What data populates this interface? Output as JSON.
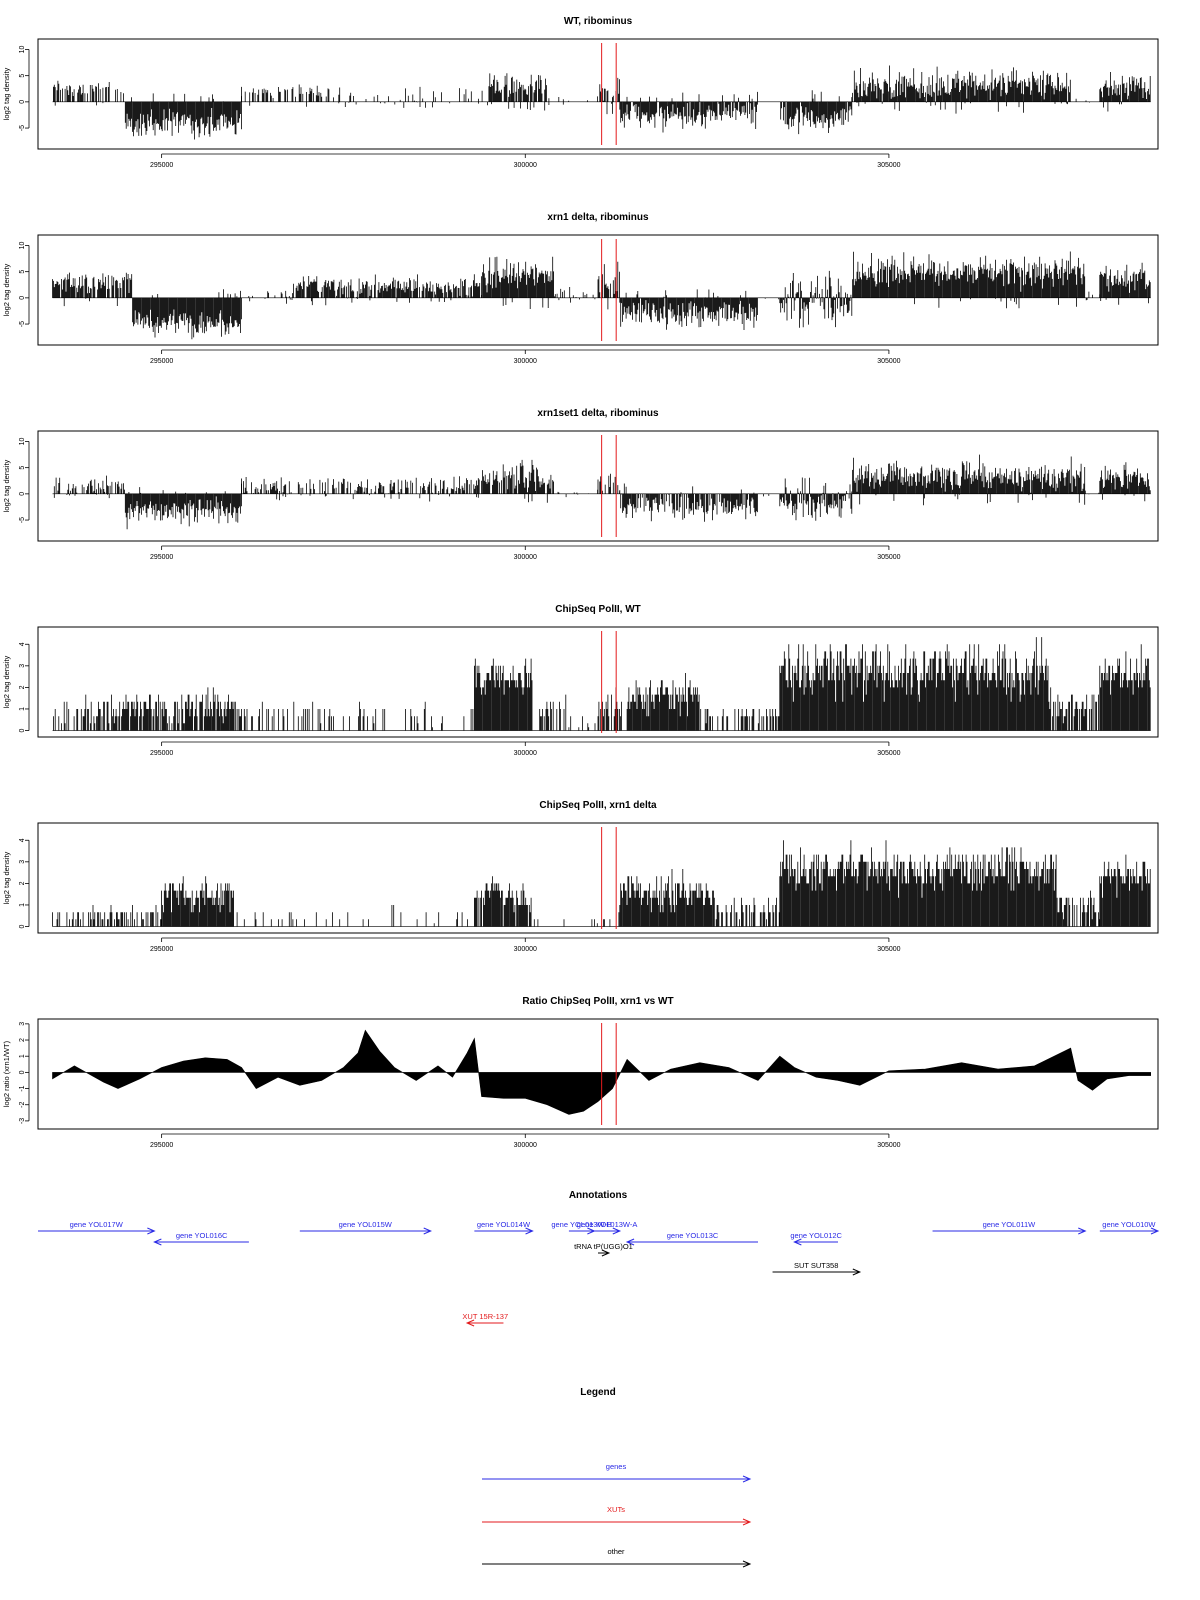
{
  "colors": {
    "bars": "#000000",
    "marker": "#e31a1c",
    "gene": "#2a2ae6",
    "xut": "#e31a1c",
    "other": "#000000",
    "frame": "#000000"
  },
  "chart_data": [
    {
      "type": "bar",
      "title": "WT, ribominus",
      "ylabel": "log2 tag density",
      "xlim": [
        293300,
        308700
      ],
      "ylim": [
        -9,
        12
      ],
      "yticks": [
        -5,
        0,
        5,
        10
      ],
      "xticks": [
        295000,
        300000,
        305000
      ],
      "markers": [
        301050,
        301250
      ],
      "signal": {
        "segments": [
          {
            "from": 293500,
            "to": 294500,
            "mean": 2.5,
            "amp": 1.5,
            "density": 0.55
          },
          {
            "from": 294500,
            "to": 296100,
            "mean": -4,
            "amp": 2.5,
            "density": 1.0
          },
          {
            "from": 296100,
            "to": 297500,
            "mean": 1.8,
            "amp": 1.2,
            "density": 0.4
          },
          {
            "from": 297500,
            "to": 299500,
            "mean": 0.6,
            "amp": 1.8,
            "density": 0.25
          },
          {
            "from": 299500,
            "to": 300300,
            "mean": 3,
            "amp": 2.2,
            "density": 0.9
          },
          {
            "from": 300300,
            "to": 301000,
            "mean": 0.4,
            "amp": 0.8,
            "density": 0.12
          },
          {
            "from": 301000,
            "to": 301300,
            "mean": 2.5,
            "amp": 3,
            "density": 0.8
          },
          {
            "from": 301300,
            "to": 303200,
            "mean": -2.5,
            "amp": 2.5,
            "density": 0.9
          },
          {
            "from": 303200,
            "to": 303500,
            "mean": 0,
            "amp": 0.4,
            "density": 0.05
          },
          {
            "from": 303500,
            "to": 304500,
            "mean": -3,
            "amp": 3,
            "density": 0.95
          },
          {
            "from": 304500,
            "to": 307500,
            "mean": 3.2,
            "amp": 3,
            "density": 1.0
          },
          {
            "from": 307500,
            "to": 307900,
            "mean": 0.3,
            "amp": 0.6,
            "density": 0.15
          },
          {
            "from": 307900,
            "to": 308600,
            "mean": 3,
            "amp": 2.5,
            "density": 1.0
          }
        ]
      }
    },
    {
      "type": "bar",
      "title": "xrn1 delta, ribominus",
      "ylabel": "log2 tag density",
      "xlim": [
        293300,
        308700
      ],
      "ylim": [
        -9,
        12
      ],
      "yticks": [
        -5,
        0,
        5,
        10
      ],
      "xticks": [
        295000,
        300000,
        305000
      ],
      "markers": [
        301050,
        301250
      ],
      "signal": {
        "segments": [
          {
            "from": 293500,
            "to": 294600,
            "mean": 3,
            "amp": 2,
            "density": 0.9
          },
          {
            "from": 294600,
            "to": 296100,
            "mean": -5,
            "amp": 2.5,
            "density": 1.0
          },
          {
            "from": 296100,
            "to": 296800,
            "mean": 0.5,
            "amp": 1.5,
            "density": 0.2
          },
          {
            "from": 296800,
            "to": 299400,
            "mean": 2.2,
            "amp": 1.8,
            "density": 0.85
          },
          {
            "from": 299400,
            "to": 300400,
            "mean": 4.5,
            "amp": 3,
            "density": 1.0
          },
          {
            "from": 300400,
            "to": 301000,
            "mean": 0.8,
            "amp": 1.2,
            "density": 0.2
          },
          {
            "from": 301000,
            "to": 301300,
            "mean": 3,
            "amp": 3,
            "density": 0.85
          },
          {
            "from": 301300,
            "to": 303200,
            "mean": -3,
            "amp": 2.5,
            "density": 1.0
          },
          {
            "from": 303200,
            "to": 303500,
            "mean": 0.2,
            "amp": 0.5,
            "density": 0.1
          },
          {
            "from": 303500,
            "to": 304500,
            "mean": -1,
            "amp": 4.5,
            "density": 1.0
          },
          {
            "from": 304500,
            "to": 307700,
            "mean": 5,
            "amp": 3,
            "density": 1.0
          },
          {
            "from": 307700,
            "to": 307900,
            "mean": 0.5,
            "amp": 1,
            "density": 0.3
          },
          {
            "from": 307900,
            "to": 308600,
            "mean": 3.5,
            "amp": 2.5,
            "density": 1.0
          }
        ]
      }
    },
    {
      "type": "bar",
      "title": "xrn1set1 delta, ribominus",
      "ylabel": "log2 tag density",
      "xlim": [
        293300,
        308700
      ],
      "ylim": [
        -9,
        12
      ],
      "yticks": [
        -5,
        0,
        5,
        10
      ],
      "xticks": [
        295000,
        300000,
        305000
      ],
      "markers": [
        301050,
        301250
      ],
      "signal": {
        "segments": [
          {
            "from": 293500,
            "to": 294500,
            "mean": 1.5,
            "amp": 1.8,
            "density": 0.6
          },
          {
            "from": 294500,
            "to": 296100,
            "mean": -3.5,
            "amp": 2.5,
            "density": 1.0
          },
          {
            "from": 296100,
            "to": 299400,
            "mean": 1.5,
            "amp": 2,
            "density": 0.6
          },
          {
            "from": 299400,
            "to": 300400,
            "mean": 3,
            "amp": 2.8,
            "density": 0.9
          },
          {
            "from": 300400,
            "to": 301000,
            "mean": 0.4,
            "amp": 1,
            "density": 0.15
          },
          {
            "from": 301000,
            "to": 301300,
            "mean": 2,
            "amp": 2,
            "density": 0.6
          },
          {
            "from": 301300,
            "to": 303200,
            "mean": -2.5,
            "amp": 2.5,
            "density": 0.85
          },
          {
            "from": 303200,
            "to": 303500,
            "mean": 0,
            "amp": 0.5,
            "density": 0.1
          },
          {
            "from": 303500,
            "to": 304500,
            "mean": -1.5,
            "amp": 3.5,
            "density": 1.0
          },
          {
            "from": 304500,
            "to": 307700,
            "mean": 3.5,
            "amp": 3,
            "density": 1.0
          },
          {
            "from": 307700,
            "to": 307900,
            "mean": 0.4,
            "amp": 0.8,
            "density": 0.2
          },
          {
            "from": 307900,
            "to": 308600,
            "mean": 3,
            "amp": 2.5,
            "density": 1.0
          }
        ]
      }
    },
    {
      "type": "bar",
      "title": "ChipSeq PolII, WT",
      "ylabel": "log2 tag density",
      "xlim": [
        293300,
        308700
      ],
      "ylim": [
        -0.3,
        4.8
      ],
      "yticks": [
        0,
        1,
        2,
        3,
        4
      ],
      "xticks": [
        295000,
        300000,
        305000
      ],
      "markers": [
        301050,
        301250
      ],
      "signal": {
        "segments": [
          {
            "from": 293500,
            "to": 294200,
            "mean": 0.9,
            "amp": 0.6,
            "density": 0.55
          },
          {
            "from": 294200,
            "to": 296000,
            "mean": 1.1,
            "amp": 0.8,
            "density": 0.85
          },
          {
            "from": 296000,
            "to": 297300,
            "mean": 0.9,
            "amp": 0.4,
            "density": 0.35
          },
          {
            "from": 297300,
            "to": 299300,
            "mean": 0.9,
            "amp": 0.6,
            "density": 0.18
          },
          {
            "from": 299300,
            "to": 300100,
            "mean": 2.5,
            "amp": 0.9,
            "density": 1.0
          },
          {
            "from": 300100,
            "to": 300600,
            "mean": 1,
            "amp": 0.6,
            "density": 0.35
          },
          {
            "from": 300600,
            "to": 301000,
            "mean": 0.3,
            "amp": 0.4,
            "density": 0.2
          },
          {
            "from": 301000,
            "to": 301400,
            "mean": 1.2,
            "amp": 0.8,
            "density": 0.5
          },
          {
            "from": 301400,
            "to": 302400,
            "mean": 1.7,
            "amp": 0.9,
            "density": 1.0
          },
          {
            "from": 302400,
            "to": 303500,
            "mean": 0.8,
            "amp": 0.4,
            "density": 0.5
          },
          {
            "from": 303500,
            "to": 307200,
            "mean": 2.8,
            "amp": 1.3,
            "density": 1.0
          },
          {
            "from": 307200,
            "to": 307900,
            "mean": 1.2,
            "amp": 0.8,
            "density": 0.7
          },
          {
            "from": 307900,
            "to": 308600,
            "mean": 2.7,
            "amp": 0.9,
            "density": 1.0
          }
        ]
      }
    },
    {
      "type": "bar",
      "title": "ChipSeq PolII, xrn1 delta",
      "ylabel": "log2 tag density",
      "xlim": [
        293300,
        308700
      ],
      "ylim": [
        -0.3,
        4.8
      ],
      "yticks": [
        0,
        1,
        2,
        3,
        4
      ],
      "xticks": [
        295000,
        300000,
        305000
      ],
      "markers": [
        301050,
        301250
      ],
      "signal": {
        "segments": [
          {
            "from": 293500,
            "to": 295000,
            "mean": 0.6,
            "amp": 0.4,
            "density": 0.5
          },
          {
            "from": 295000,
            "to": 296000,
            "mean": 1.5,
            "amp": 0.8,
            "density": 1.0
          },
          {
            "from": 296000,
            "to": 299300,
            "mean": 0.5,
            "amp": 0.4,
            "density": 0.12
          },
          {
            "from": 299300,
            "to": 300100,
            "mean": 1.5,
            "amp": 0.7,
            "density": 0.9
          },
          {
            "from": 300100,
            "to": 301300,
            "mean": 0.4,
            "amp": 0.4,
            "density": 0.15
          },
          {
            "from": 301300,
            "to": 302600,
            "mean": 1.6,
            "amp": 0.8,
            "density": 1.0
          },
          {
            "from": 302600,
            "to": 303500,
            "mean": 0.8,
            "amp": 0.4,
            "density": 0.5
          },
          {
            "from": 303500,
            "to": 307300,
            "mean": 2.7,
            "amp": 1.0,
            "density": 1.0
          },
          {
            "from": 307300,
            "to": 307900,
            "mean": 1.0,
            "amp": 0.7,
            "density": 0.7
          },
          {
            "from": 307900,
            "to": 308600,
            "mean": 2.3,
            "amp": 0.8,
            "density": 1.0
          }
        ]
      }
    },
    {
      "type": "area",
      "title": "Ratio ChipSeq PolII, xrn1 vs WT",
      "ylabel": "log2 ratio (xrn1/WT)",
      "xlim": [
        293300,
        308700
      ],
      "ylim": [
        -3.5,
        3.3
      ],
      "yticks": [
        -3,
        -2,
        -1,
        0,
        1,
        2,
        3
      ],
      "xticks": [
        295000,
        300000,
        305000
      ],
      "markers": [
        301050,
        301250
      ],
      "x": [
        293500,
        293800,
        294200,
        294400,
        294700,
        295000,
        295300,
        295600,
        295900,
        296100,
        296300,
        296600,
        296900,
        297200,
        297500,
        297700,
        297800,
        298000,
        298200,
        298500,
        298800,
        299000,
        299200,
        299300,
        299400,
        299700,
        300000,
        300300,
        300600,
        300800,
        301000,
        301200,
        301400,
        301700,
        302000,
        302400,
        302800,
        303200,
        303500,
        303700,
        304000,
        304300,
        304600,
        305000,
        305500,
        306000,
        306500,
        307000,
        307500,
        307600,
        307800,
        308000,
        308300,
        308600
      ],
      "y": [
        -0.4,
        0.4,
        -0.6,
        -1.0,
        -0.4,
        0.3,
        0.7,
        0.9,
        0.8,
        0.3,
        -1.0,
        -0.3,
        -0.8,
        -0.5,
        0.3,
        1.2,
        2.6,
        1.3,
        0.3,
        -0.5,
        0.4,
        -0.3,
        1.2,
        2.1,
        -1.5,
        -1.6,
        -1.6,
        -2.0,
        -2.6,
        -2.4,
        -1.8,
        -1.0,
        0.8,
        -0.5,
        0.2,
        0.6,
        0.3,
        -0.5,
        1.0,
        0.3,
        -0.3,
        -0.5,
        -0.8,
        0.1,
        0.2,
        0.6,
        0.2,
        0.4,
        1.5,
        -0.5,
        -1.1,
        -0.4,
        -0.2,
        -0.2
      ]
    }
  ],
  "annotations": {
    "title": "Annotations",
    "xlim": [
      293300,
      308700
    ],
    "features": [
      {
        "label": "gene YOL017W",
        "kind": "gene",
        "from": 293300,
        "to": 294900,
        "dir": "right",
        "row": 0
      },
      {
        "label": "gene YOL016C",
        "kind": "gene",
        "from": 294900,
        "to": 296200,
        "dir": "left",
        "row": 1
      },
      {
        "label": "gene YOL015W",
        "kind": "gene",
        "from": 296900,
        "to": 298700,
        "dir": "right",
        "row": 0
      },
      {
        "label": "gene YOL014W",
        "kind": "gene",
        "from": 299300,
        "to": 300100,
        "dir": "right",
        "row": 0
      },
      {
        "label": "gene YOL013W-B",
        "kind": "gene",
        "from": 300600,
        "to": 300950,
        "dir": "right",
        "row": 0
      },
      {
        "label": "gene YOL013W-A",
        "kind": "gene",
        "from": 300950,
        "to": 301300,
        "dir": "right",
        "row": 0
      },
      {
        "label": "gene YOL013C",
        "kind": "gene",
        "from": 301400,
        "to": 303200,
        "dir": "left",
        "row": 1
      },
      {
        "label": "gene YOL012C",
        "kind": "gene",
        "from": 303700,
        "to": 304300,
        "dir": "left",
        "row": 1
      },
      {
        "label": "gene YOL011W",
        "kind": "gene",
        "from": 305600,
        "to": 307700,
        "dir": "right",
        "row": 0
      },
      {
        "label": "gene YOL010W",
        "kind": "gene",
        "from": 307900,
        "to": 308700,
        "dir": "right",
        "row": 0
      },
      {
        "label": "tRNA tP(UGG)O1",
        "kind": "other",
        "from": 301000,
        "to": 301150,
        "dir": "right",
        "row": 2
      },
      {
        "label": "SUT SUT358",
        "kind": "other",
        "from": 303400,
        "to": 304600,
        "dir": "right",
        "row": 3
      },
      {
        "label": "XUT 15R-137",
        "kind": "xut",
        "from": 299200,
        "to": 299700,
        "dir": "left",
        "row": 5
      }
    ]
  },
  "legend": {
    "title": "Legend",
    "items": [
      {
        "label": "genes",
        "kind": "gene"
      },
      {
        "label": "XUTs",
        "kind": "xut"
      },
      {
        "label": "other",
        "kind": "other"
      }
    ]
  }
}
